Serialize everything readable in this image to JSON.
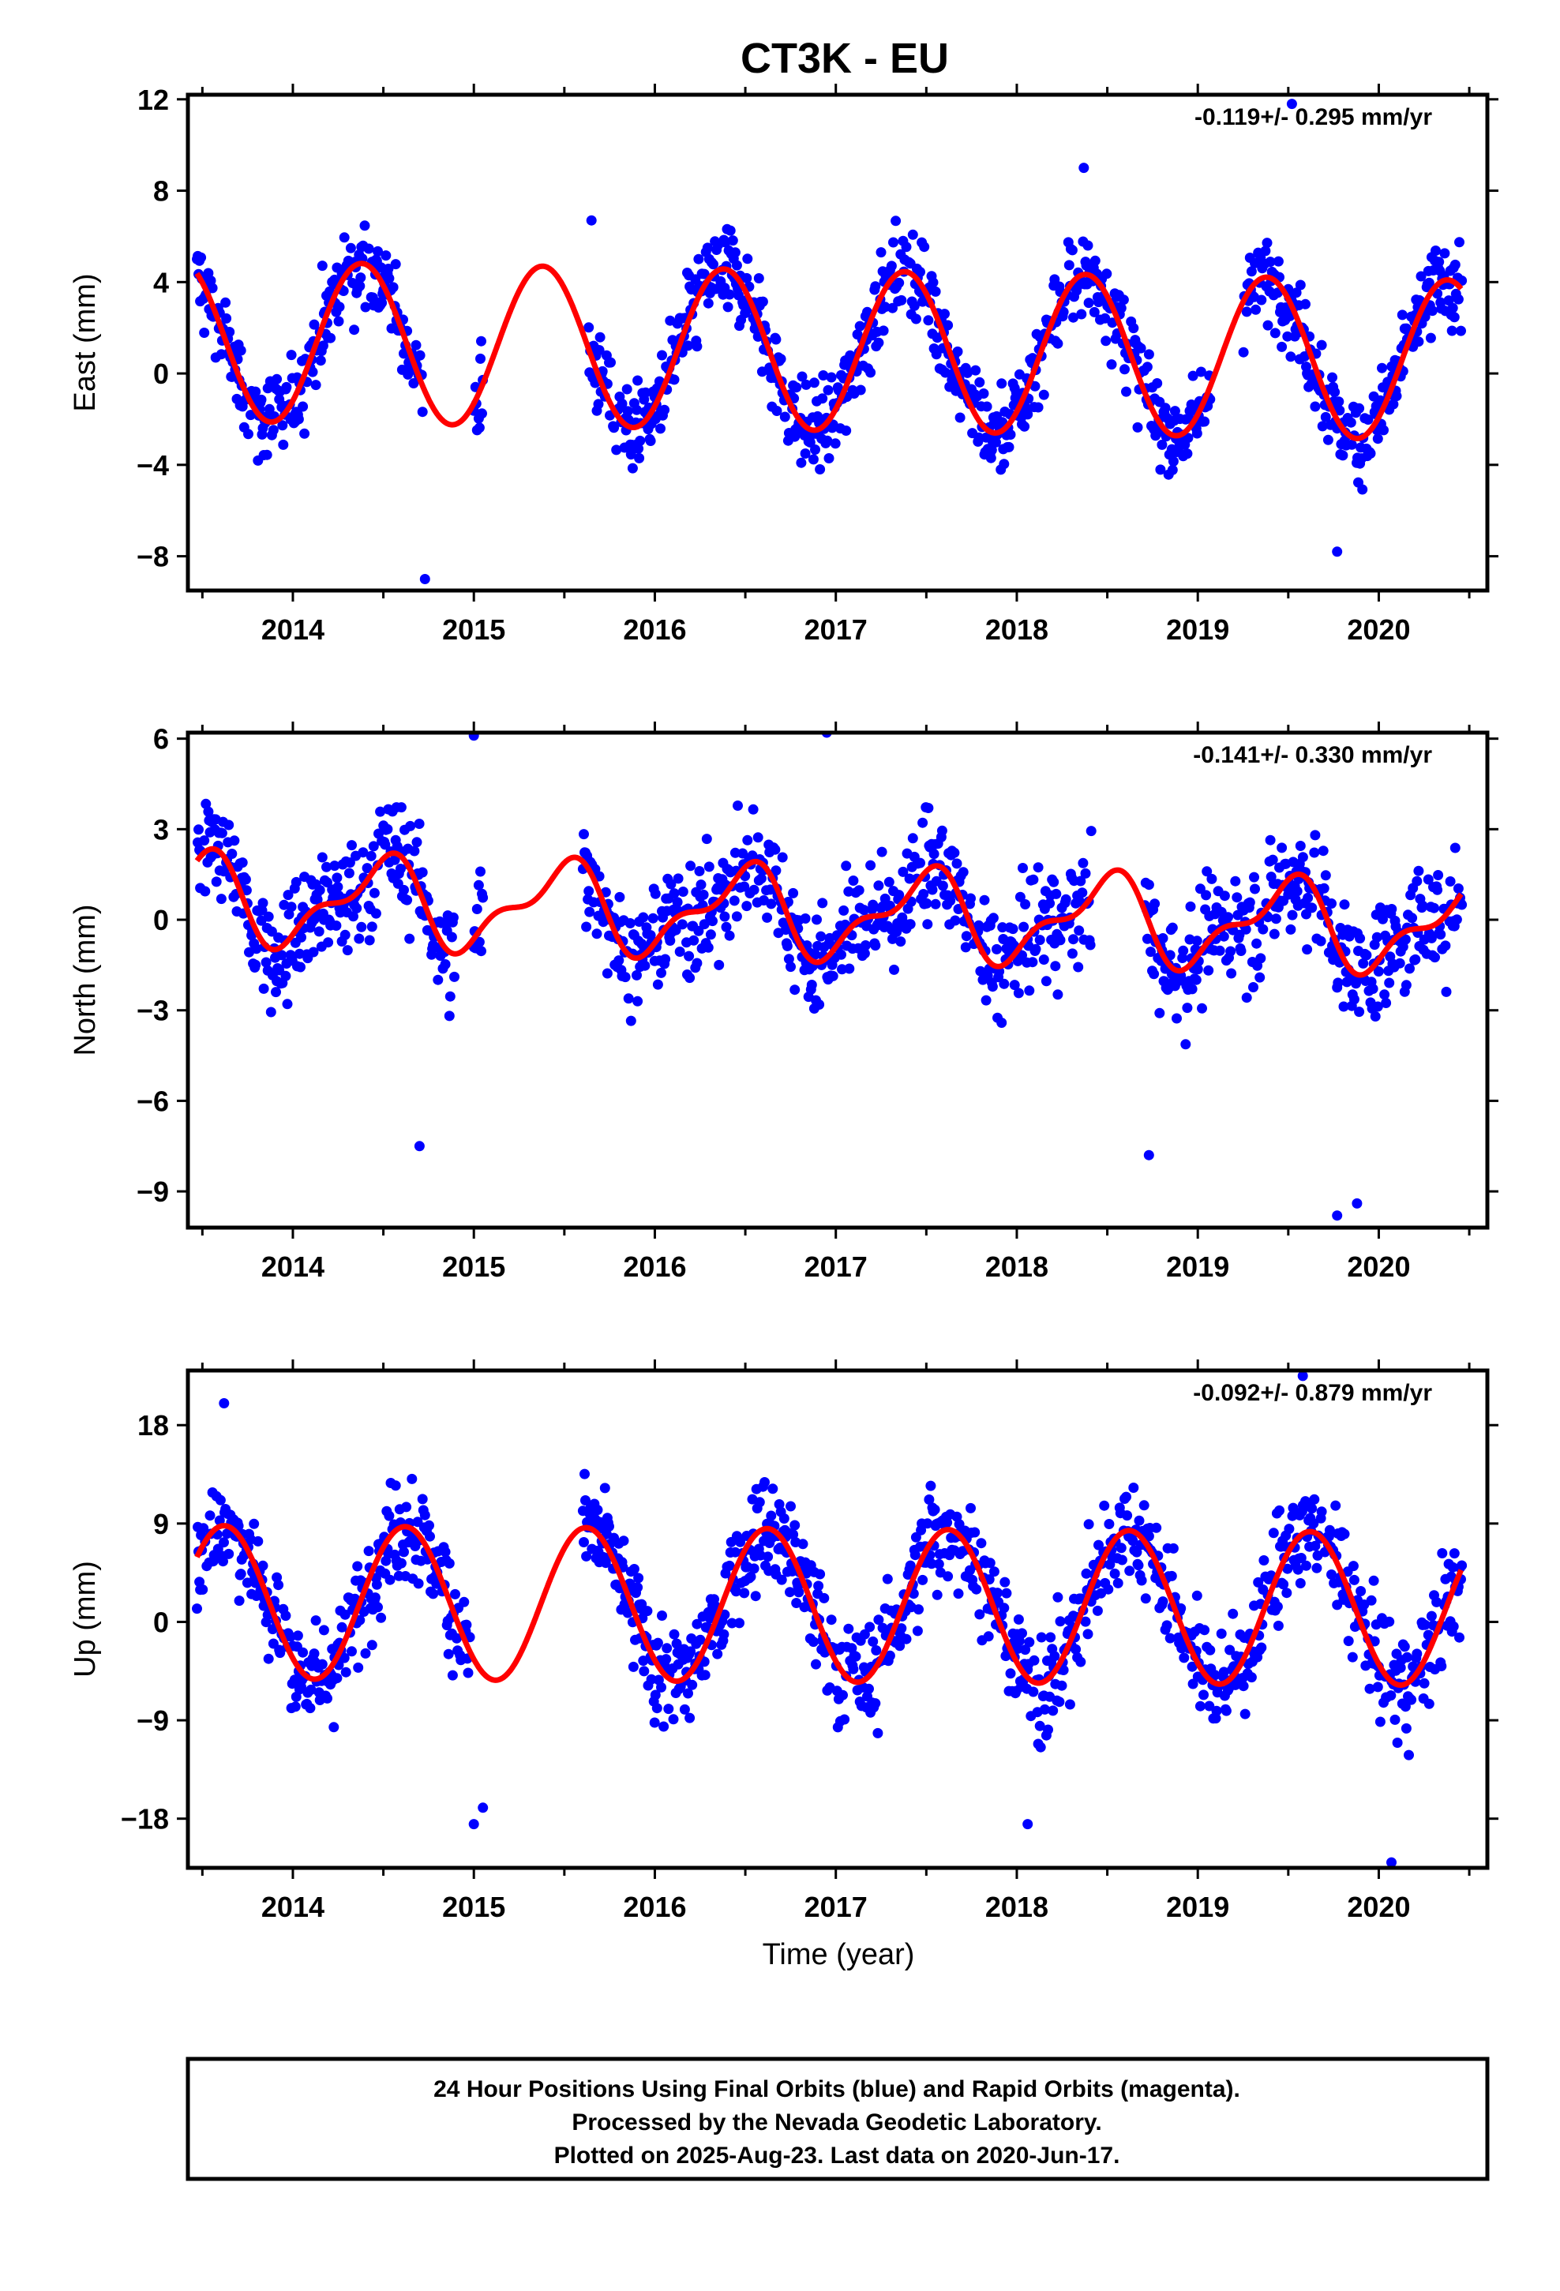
{
  "chart_data": {
    "type": "scatter",
    "title": "CT3K - EU",
    "xlabel": "Time (year)",
    "x_ticks": [
      "2014",
      "2015",
      "2016",
      "2017",
      "2018",
      "2019",
      "2020"
    ],
    "xlim": [
      2013.42,
      2020.6
    ],
    "colors": {
      "observations": "#0000ff",
      "model": "#ff0000"
    },
    "panels": [
      {
        "ylabel": "East (mm)",
        "rate": "-0.119+/- 0.295 mm/yr",
        "yticks": [
          "12",
          "8",
          "4",
          "0",
          "−4",
          "−8"
        ],
        "ylim": [
          -9.5,
          12.2
        ],
        "model": {
          "offset": 1.0,
          "amplitude": 3.5,
          "phase_year": 0.38,
          "trend_mm_per_yr": -0.12
        },
        "scatter_sd": 1.6,
        "gaps": [
          [
            2014.72,
            2015.0
          ],
          [
            2015.05,
            2015.63
          ],
          [
            2019.07,
            2019.25
          ]
        ],
        "outliers": [
          [
            2014.73,
            -9.0
          ],
          [
            2019.77,
            -7.8
          ],
          [
            2018.37,
            9.0
          ],
          [
            2019.52,
            11.8
          ],
          [
            2015.65,
            6.7
          ]
        ]
      },
      {
        "ylabel": "North (mm)",
        "rate": "-0.141+/- 0.330 mm/yr",
        "yticks": [
          "6",
          "3",
          "0",
          "−3",
          "−6",
          "−9"
        ],
        "ylim": [
          -10.2,
          6.2
        ],
        "model": {
          "offset": 0.2,
          "amplitude": 1.3,
          "phase_year": 0.48,
          "trend_mm_per_yr": -0.14
        },
        "scatter_sd": 1.55,
        "gaps": [
          [
            2014.9,
            2015.0
          ],
          [
            2015.05,
            2015.6
          ],
          [
            2018.42,
            2018.7
          ]
        ],
        "outliers": [
          [
            2014.7,
            -7.5
          ],
          [
            2018.73,
            -7.8
          ],
          [
            2019.77,
            -9.8
          ],
          [
            2019.88,
            -9.4
          ],
          [
            2015.0,
            6.1
          ],
          [
            2016.95,
            6.2
          ]
        ]
      },
      {
        "ylabel": "Up (mm)",
        "rate": "-0.092+/- 0.879 mm/yr",
        "yticks": [
          "18",
          "9",
          "0",
          "−9",
          "−18"
        ],
        "ylim": [
          -22.5,
          23.0
        ],
        "model": {
          "offset": 1.5,
          "amplitude": 7.0,
          "phase_year": 0.62,
          "trend_mm_per_yr": -0.09
        },
        "scatter_sd": 4.2,
        "gaps": [
          [
            2014.98,
            2015.6
          ]
        ],
        "outliers": [
          [
            2015.0,
            -18.5
          ],
          [
            2015.05,
            -17.0
          ],
          [
            2018.06,
            -18.5
          ],
          [
            2020.07,
            -22.0
          ],
          [
            2013.62,
            20.0
          ],
          [
            2019.58,
            22.5
          ]
        ]
      }
    ]
  },
  "footer": {
    "lines": [
      "24 Hour Positions Using Final Orbits (blue) and Rapid Orbits (magenta).",
      "Processed by the Nevada Geodetic Laboratory.",
      "Plotted on 2025-Aug-23. Last data on 2020-Jun-17."
    ]
  }
}
